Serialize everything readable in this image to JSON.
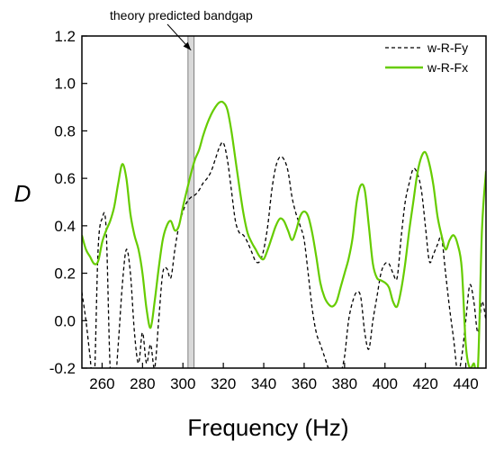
{
  "chart_data": {
    "type": "line",
    "xlabel": "Frequency  (Hz)",
    "ylabel": "D",
    "xlim": [
      250,
      450
    ],
    "ylim": [
      -0.2,
      1.2
    ],
    "xticks": [
      260,
      280,
      300,
      320,
      340,
      360,
      380,
      400,
      420,
      440
    ],
    "yticks": [
      -0.2,
      0.0,
      0.2,
      0.4,
      0.6,
      0.8,
      1.0,
      1.2
    ],
    "xtick_labels": [
      "260",
      "280",
      "300",
      "320",
      "340",
      "360",
      "380",
      "400",
      "420",
      "440"
    ],
    "ytick_labels": [
      "-0.2",
      "0.0",
      "0.2",
      "0.4",
      "0.6",
      "0.8",
      "1.0",
      "1.2"
    ],
    "grid": false,
    "legend_position": "top-right",
    "bandgap": {
      "x_start": 302.5,
      "x_end": 305.5,
      "color": "#d9d9d9"
    },
    "annotation": {
      "text": "theory predicted bandgap",
      "points_to": {
        "x": 304,
        "y": 1.14
      }
    },
    "series": [
      {
        "name": "w-R-Fy",
        "style": "dashed",
        "color": "#000000",
        "x": [
          250,
          252,
          254,
          256,
          258,
          260,
          262,
          264,
          266,
          268,
          270,
          272,
          274,
          276,
          278,
          280,
          282,
          284,
          286,
          288,
          290,
          292,
          294,
          296,
          298,
          300,
          302,
          304,
          306,
          308,
          310,
          312,
          314,
          316,
          318,
          320,
          322,
          324,
          326,
          328,
          330,
          332,
          334,
          336,
          338,
          340,
          342,
          344,
          346,
          348,
          350,
          352,
          354,
          356,
          358,
          360,
          362,
          364,
          366,
          368,
          370,
          372,
          374,
          376,
          378,
          380,
          382,
          384,
          386,
          388,
          390,
          392,
          394,
          396,
          398,
          400,
          402,
          404,
          406,
          408,
          410,
          412,
          414,
          416,
          418,
          420,
          422,
          424,
          426,
          428,
          430,
          432,
          434,
          436,
          438,
          440,
          442,
          444,
          446,
          448,
          450
        ],
        "y": [
          0.12,
          0.0,
          -0.15,
          -0.28,
          0.3,
          0.43,
          0.39,
          -0.2,
          -0.3,
          -0.1,
          0.15,
          0.3,
          0.2,
          -0.05,
          -0.18,
          -0.05,
          -0.18,
          -0.1,
          -0.2,
          0.0,
          0.2,
          0.22,
          0.18,
          0.3,
          0.4,
          0.46,
          0.5,
          0.52,
          0.53,
          0.55,
          0.58,
          0.6,
          0.63,
          0.68,
          0.73,
          0.75,
          0.68,
          0.55,
          0.42,
          0.37,
          0.36,
          0.33,
          0.29,
          0.25,
          0.25,
          0.3,
          0.4,
          0.55,
          0.65,
          0.69,
          0.68,
          0.63,
          0.52,
          0.45,
          0.4,
          0.34,
          0.2,
          0.05,
          -0.05,
          -0.1,
          -0.15,
          -0.2,
          -0.22,
          -0.24,
          -0.22,
          -0.15,
          0.0,
          0.08,
          0.12,
          0.1,
          -0.05,
          -0.12,
          0.0,
          0.1,
          0.2,
          0.24,
          0.24,
          0.2,
          0.18,
          0.35,
          0.5,
          0.58,
          0.64,
          0.62,
          0.55,
          0.4,
          0.25,
          0.28,
          0.32,
          0.35,
          0.2,
          0.05,
          -0.08,
          -0.22,
          -0.15,
          0.0,
          0.15,
          0.08,
          -0.05,
          0.08,
          0.0
        ]
      },
      {
        "name": "w-R-Fx",
        "style": "solid",
        "color": "#66cc00",
        "x": [
          250,
          252,
          254,
          256,
          258,
          260,
          262,
          264,
          266,
          268,
          270,
          272,
          274,
          276,
          278,
          280,
          282,
          284,
          286,
          288,
          290,
          292,
          294,
          296,
          298,
          300,
          302,
          304,
          306,
          308,
          310,
          312,
          314,
          316,
          318,
          320,
          322,
          324,
          326,
          328,
          330,
          332,
          334,
          336,
          338,
          340,
          342,
          344,
          346,
          348,
          350,
          352,
          354,
          356,
          358,
          360,
          362,
          364,
          366,
          368,
          370,
          372,
          374,
          376,
          378,
          380,
          382,
          384,
          386,
          388,
          390,
          392,
          394,
          396,
          398,
          400,
          402,
          404,
          406,
          408,
          410,
          412,
          414,
          416,
          418,
          420,
          422,
          424,
          426,
          428,
          430,
          432,
          434,
          436,
          438,
          440,
          442,
          444,
          446,
          448,
          450
        ],
        "y": [
          0.36,
          0.3,
          0.27,
          0.24,
          0.25,
          0.33,
          0.38,
          0.42,
          0.48,
          0.58,
          0.66,
          0.6,
          0.45,
          0.36,
          0.3,
          0.2,
          0.05,
          -0.03,
          0.08,
          0.22,
          0.34,
          0.4,
          0.42,
          0.38,
          0.4,
          0.48,
          0.55,
          0.62,
          0.68,
          0.72,
          0.78,
          0.83,
          0.87,
          0.9,
          0.92,
          0.92,
          0.89,
          0.8,
          0.68,
          0.56,
          0.45,
          0.37,
          0.33,
          0.3,
          0.27,
          0.26,
          0.3,
          0.35,
          0.4,
          0.43,
          0.42,
          0.38,
          0.34,
          0.38,
          0.44,
          0.46,
          0.44,
          0.37,
          0.27,
          0.16,
          0.1,
          0.07,
          0.06,
          0.08,
          0.14,
          0.2,
          0.26,
          0.35,
          0.5,
          0.57,
          0.55,
          0.4,
          0.24,
          0.18,
          0.17,
          0.16,
          0.14,
          0.08,
          0.06,
          0.13,
          0.24,
          0.38,
          0.5,
          0.62,
          0.69,
          0.71,
          0.66,
          0.57,
          0.44,
          0.36,
          0.3,
          0.34,
          0.36,
          0.32,
          0.22,
          -0.1,
          -0.2,
          -0.18,
          -0.2,
          0.38,
          0.63
        ]
      }
    ]
  }
}
